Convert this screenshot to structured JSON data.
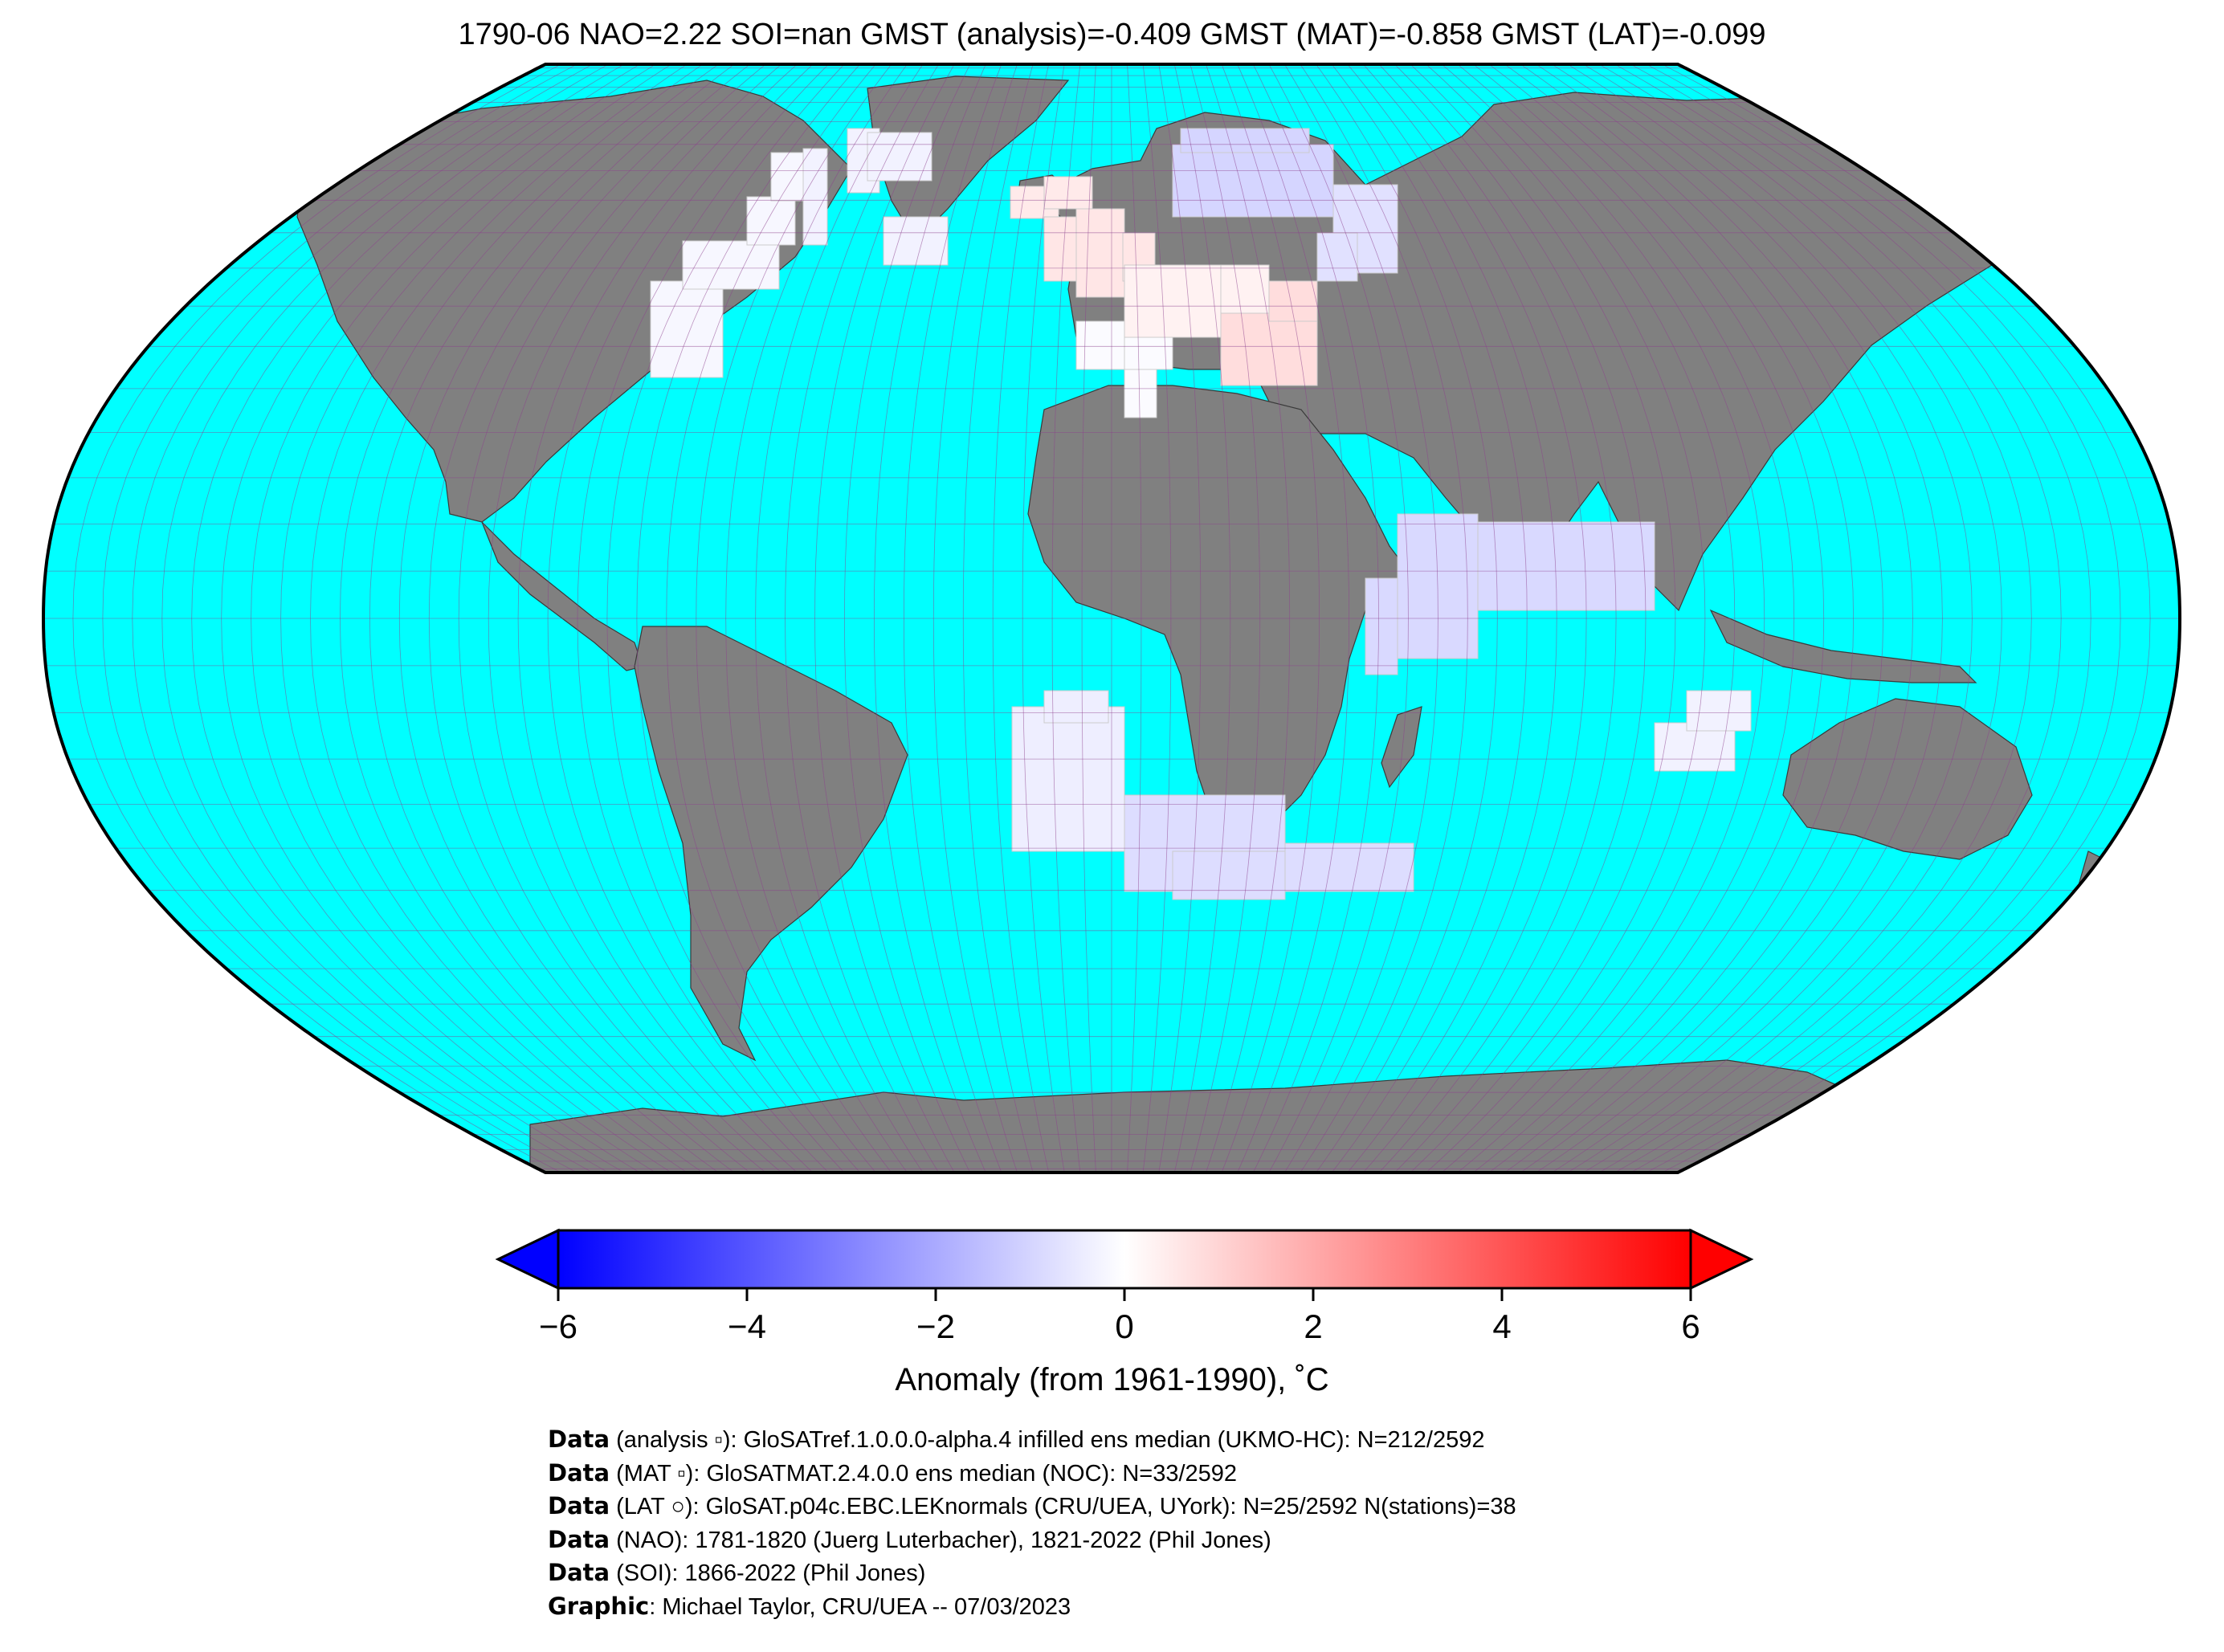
{
  "title": "1790-06 NAO=2.22 SOI=nan GMST (analysis)=-0.409 GMST (MAT)=-0.858 GMST (LAT)=-0.099",
  "colors": {
    "ocean": "#00ffff",
    "land": "#808080",
    "grid": "#8c3f8c",
    "border": "#000000",
    "cold": "#0000ff",
    "neutral": "#ffffff",
    "warm": "#ff0000"
  },
  "colorbar": {
    "min": -6,
    "max": 6,
    "ticks": [
      "−6",
      "−4",
      "−2",
      "0",
      "2",
      "4",
      "6"
    ],
    "label": "Anomaly (from 1961-1990), ˚C"
  },
  "credits": [
    {
      "lead": "Data",
      "text": " (analysis ▫): GloSATref.1.0.0.0-alpha.4 infilled ens median (UKMO-HC): N=212/2592"
    },
    {
      "lead": "Data",
      "text": " (MAT ▫): GloSATMAT.2.4.0.0 ens median (NOC): N=33/2592"
    },
    {
      "lead": "Data",
      "text": " (LAT ○): GloSAT.p04c.EBC.LEKnormals (CRU/UEA, UYork): N=25/2592 N(stations)=38"
    },
    {
      "lead": "Data",
      "text": " (NAO): 1781-1820 (Juerg Luterbacher), 1821-2022 (Phil Jones)"
    },
    {
      "lead": "Data",
      "text": " (SOI): 1866-2022 (Phil Jones)"
    },
    {
      "lead": "Graphic",
      "text": ": Michael Taylor, CRU/UEA -- 07/03/2023"
    }
  ],
  "anomaly_cells": [
    {
      "region": "North America east",
      "anomaly": -0.2
    },
    {
      "region": "North Atlantic / Greenland",
      "anomaly": -0.3
    },
    {
      "region": "Iceland",
      "anomaly": 0.5
    },
    {
      "region": "British Isles / North Sea",
      "anomaly": 0.6
    },
    {
      "region": "Scandinavia / Baltic",
      "anomaly": -1.0
    },
    {
      "region": "Western Russia",
      "anomaly": -0.7
    },
    {
      "region": "Central Europe",
      "anomaly": 0.3
    },
    {
      "region": "Southeast Europe / Balkans",
      "anomaly": 0.8
    },
    {
      "region": "Iberia / Western Mediterranean",
      "anomaly": -0.1
    },
    {
      "region": "Arabian Sea / Indian Ocean",
      "anomaly": -0.9
    },
    {
      "region": "South Atlantic",
      "anomaly": -0.4
    },
    {
      "region": "South of Africa",
      "anomaly": -0.8
    },
    {
      "region": "Southern Indian Ocean",
      "anomaly": -0.3
    }
  ]
}
